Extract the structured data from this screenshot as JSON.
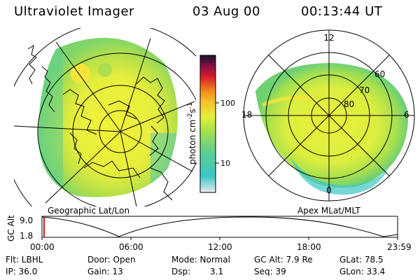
{
  "header": {
    "title": "Ultraviolet Imager",
    "date": "03 Aug 00",
    "time": "00:13:44 UT"
  },
  "left_panel": {
    "label": "Geographic Lat/Lon"
  },
  "right_panel": {
    "label": "Apex MLat/MLT",
    "mlt_labels": [
      "12",
      "18",
      "6",
      "0"
    ],
    "lat_labels": [
      "60",
      "70",
      "80"
    ]
  },
  "colorbar": {
    "unit_label": "photon cm",
    "unit_sup1": "-2",
    "unit_mid": "s",
    "unit_sup2": "-1",
    "ticks": [
      "100",
      "10"
    ],
    "colors": [
      "#e9ecef",
      "#3cc6c6",
      "#5fcf8f",
      "#a8e04a",
      "#e4ef3a",
      "#f6c22a",
      "#f08a1a",
      "#d8202a",
      "#8a1040",
      "#121230"
    ]
  },
  "altitude_strip": {
    "axis_label": "GC Alt",
    "y_ticks": [
      "9.0",
      "1.8"
    ],
    "x_ticks": [
      "00:00",
      "06:00",
      "12:00",
      "18:00",
      "23:59"
    ]
  },
  "info": {
    "row1": {
      "flt": "Flt: LBHL",
      "door": "Door: Open",
      "mode": "Mode: Normal",
      "gcalt": "GC Alt: 7.9 Re",
      "glat": "GLat: 78.5"
    },
    "row2": {
      "ip": "IP: 36.0",
      "gain": "Gain: 13",
      "dsp_label": "Dsp:",
      "dsp_value": "3.1",
      "seq": "Seq: 39",
      "glon": "GLon: 33.4"
    }
  }
}
